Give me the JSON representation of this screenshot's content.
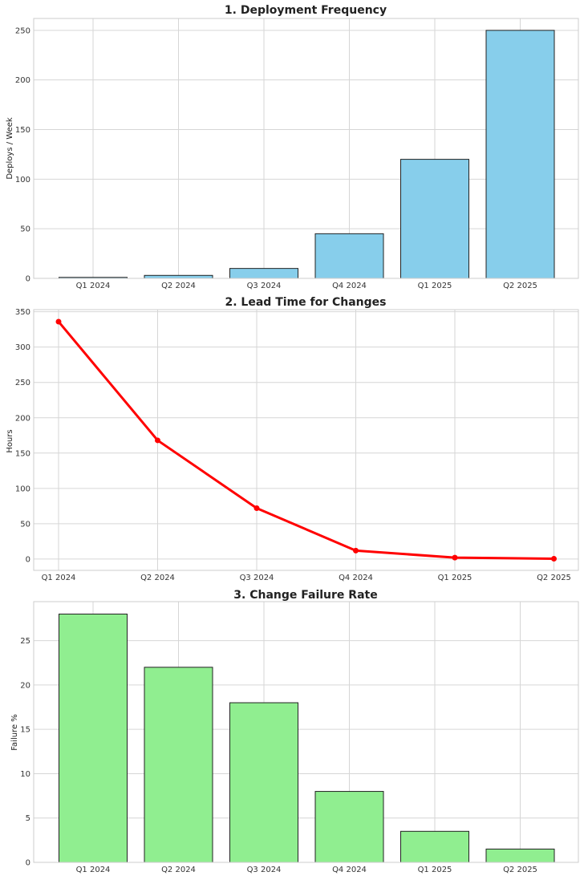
{
  "chart_data": [
    {
      "type": "bar",
      "title": "1. Deployment Frequency",
      "xlabel": "",
      "ylabel": "Deploys / Week",
      "categories": [
        "Q1 2024",
        "Q2 2024",
        "Q3 2024",
        "Q4 2024",
        "Q1 2025",
        "Q2 2025"
      ],
      "values": [
        1,
        3,
        10,
        45,
        120,
        250
      ],
      "ylim": [
        0,
        262
      ],
      "yticks": [
        0,
        50,
        100,
        150,
        200,
        250
      ],
      "grid": true,
      "color": "#87CEEB"
    },
    {
      "type": "line",
      "title": "2. Lead Time for Changes",
      "xlabel": "",
      "ylabel": "Hours",
      "categories": [
        "Q1 2024",
        "Q2 2024",
        "Q3 2024",
        "Q4 2024",
        "Q1 2025",
        "Q2 2025"
      ],
      "values": [
        336,
        168,
        72,
        12,
        2,
        0.5
      ],
      "ylim": [
        -16,
        353
      ],
      "yticks": [
        0,
        50,
        100,
        150,
        200,
        250,
        300,
        350
      ],
      "grid": true,
      "color": "#ff0000"
    },
    {
      "type": "bar",
      "title": "3. Change Failure Rate",
      "xlabel": "",
      "ylabel": "Failure %",
      "categories": [
        "Q1 2024",
        "Q2 2024",
        "Q3 2024",
        "Q4 2024",
        "Q1 2025",
        "Q2 2025"
      ],
      "values": [
        28,
        22,
        18,
        8,
        3.5,
        1.5
      ],
      "ylim": [
        0,
        29.4
      ],
      "yticks": [
        0,
        5,
        10,
        15,
        20,
        25
      ],
      "grid": true,
      "color": "#90EE90"
    }
  ]
}
